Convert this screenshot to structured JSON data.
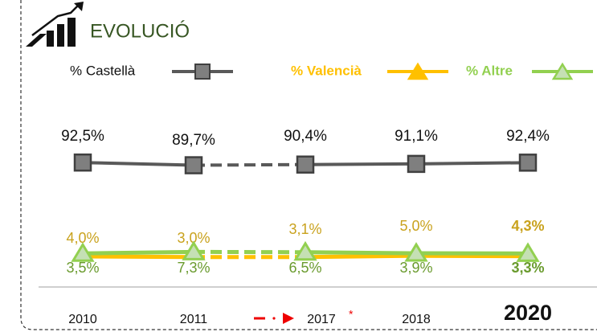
{
  "chart_data": {
    "type": "line",
    "title": "EVOLUCIÓ",
    "categories": [
      "2010",
      "2011",
      "2017",
      "2018",
      "2020"
    ],
    "asterisk": "*",
    "series": [
      {
        "name": "% Castellà",
        "color": "#595959",
        "values": [
          92.5,
          89.7,
          90.4,
          91.1,
          92.4
        ],
        "value_labels": [
          "92,5%",
          "89,7%",
          "90,4%",
          "91,1%",
          "92,4%"
        ]
      },
      {
        "name": "% Valencià",
        "color": "#ffc000",
        "values": [
          4.0,
          3.0,
          3.1,
          5.0,
          4.3
        ],
        "value_labels": [
          "4,0%",
          "3,0%",
          "3,1%",
          "5,0%",
          "4,3%"
        ]
      },
      {
        "name": "% Altre",
        "color": "#92d050",
        "values": [
          3.5,
          7.3,
          6.5,
          3.9,
          3.3
        ],
        "value_labels": [
          "3,5%",
          "7,3%",
          "6,5%",
          "3,9%",
          "3,3%"
        ]
      }
    ]
  }
}
